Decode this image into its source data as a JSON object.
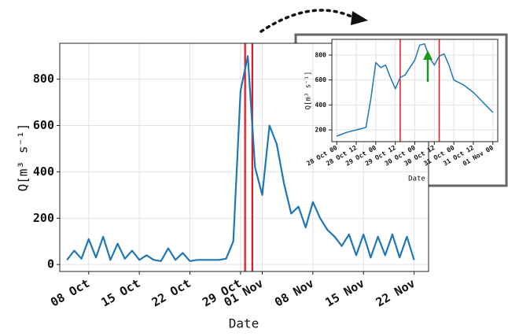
{
  "chart_data": [
    {
      "type": "line",
      "x_label": "Date",
      "y_label": "Q[m³ s⁻¹]",
      "x": [
        "05 Oct",
        "06 Oct",
        "07 Oct",
        "08 Oct",
        "09 Oct",
        "10 Oct",
        "11 Oct",
        "12 Oct",
        "13 Oct",
        "14 Oct",
        "15 Oct",
        "16 Oct",
        "17 Oct",
        "18 Oct",
        "19 Oct",
        "20 Oct",
        "21 Oct",
        "22 Oct",
        "23 Oct",
        "24 Oct",
        "25 Oct",
        "26 Oct",
        "27 Oct",
        "28 Oct",
        "29 Oct",
        "30 Oct",
        "31 Oct",
        "01 Nov",
        "02 Nov",
        "03 Nov",
        "04 Nov",
        "05 Nov",
        "06 Nov",
        "07 Nov",
        "08 Nov",
        "09 Nov",
        "10 Nov",
        "11 Nov",
        "12 Nov",
        "13 Nov",
        "14 Nov",
        "15 Nov",
        "16 Nov",
        "17 Nov",
        "18 Nov",
        "19 Nov",
        "20 Nov",
        "21 Nov",
        "22 Nov"
      ],
      "series": [
        {
          "color": "#1f77b4",
          "values": [
            20,
            60,
            25,
            110,
            30,
            120,
            20,
            90,
            25,
            60,
            20,
            40,
            20,
            15,
            70,
            20,
            50,
            15,
            20,
            20,
            20,
            20,
            25,
            100,
            750,
            900,
            420,
            300,
            600,
            520,
            350,
            220,
            250,
            160,
            270,
            200,
            150,
            120,
            80,
            130,
            40,
            130,
            30,
            120,
            40,
            130,
            30,
            120,
            20
          ]
        }
      ],
      "vlines": [
        "29 Oct 15",
        "30 Oct 15"
      ],
      "vline_color": "#e8141c",
      "xlim": [
        "04 Oct",
        "24 Nov"
      ],
      "xticks": [
        "08 Oct",
        "15 Oct",
        "22 Oct",
        "29 Oct",
        "01 Nov",
        "08 Nov",
        "15 Nov",
        "22 Nov"
      ],
      "ylim": [
        -30,
        955
      ],
      "yticks": [
        0,
        200,
        400,
        600,
        800
      ],
      "grid": true
    },
    {
      "type": "line",
      "x_label": "Date",
      "y_label": "Q[m³ s⁻¹]",
      "x": [
        "28 Oct 00",
        "28 Oct 06",
        "28 Oct 12",
        "28 Oct 18",
        "28 Oct 21",
        "29 Oct 00",
        "29 Oct 03",
        "29 Oct 06",
        "29 Oct 09",
        "29 Oct 12",
        "29 Oct 15",
        "29 Oct 18",
        "29 Oct 21",
        "30 Oct 00",
        "30 Oct 03",
        "30 Oct 06",
        "30 Oct 09",
        "30 Oct 12",
        "30 Oct 15",
        "30 Oct 18",
        "30 Oct 21",
        "31 Oct 00",
        "31 Oct 06",
        "31 Oct 12",
        "31 Oct 18",
        "01 Nov 00"
      ],
      "series": [
        {
          "color": "#1f77b4",
          "values": [
            150,
            180,
            200,
            220,
            450,
            740,
            700,
            720,
            620,
            530,
            620,
            640,
            700,
            760,
            880,
            890,
            780,
            720,
            790,
            810,
            720,
            600,
            560,
            500,
            420,
            340
          ]
        }
      ],
      "vlines": [
        "29 Oct 15",
        "30 Oct 15"
      ],
      "vline_color": "#e8141c",
      "xlim": [
        "27 Oct 21",
        "01 Nov 03"
      ],
      "xticks": [
        "28 Oct 00",
        "28 Oct 12",
        "29 Oct 00",
        "29 Oct 12",
        "30 Oct 00",
        "30 Oct 12",
        "31 Oct 00",
        "31 Oct 12",
        "01 Nov 00"
      ],
      "ylim": [
        106,
        926
      ],
      "yticks": [
        200,
        400,
        600,
        800
      ],
      "grid": true
    }
  ]
}
